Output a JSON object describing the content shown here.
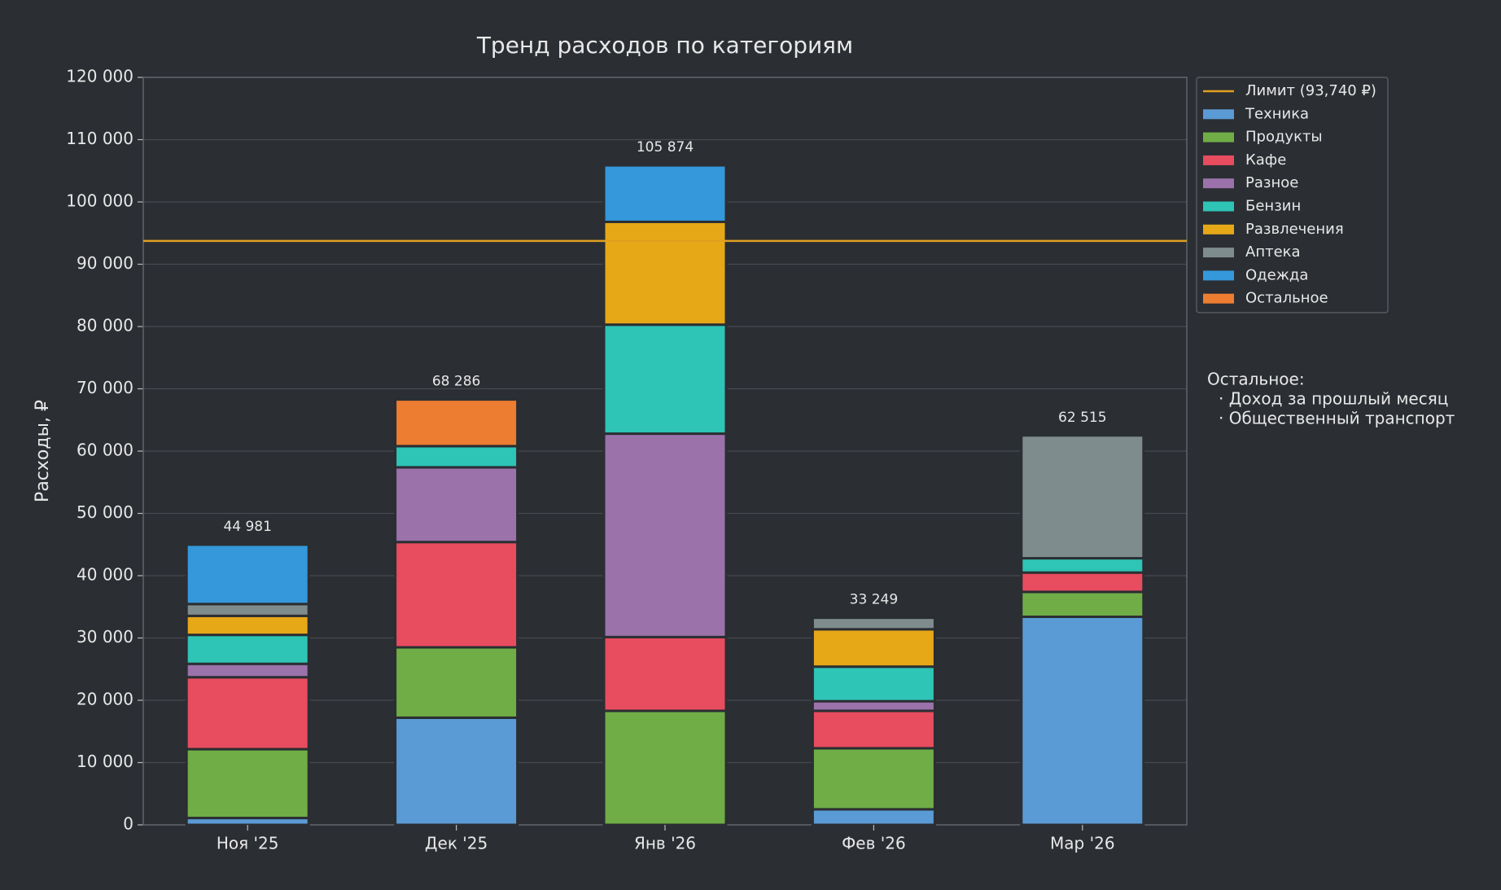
{
  "chart_data": {
    "type": "stacked_bar",
    "title": "Тренд расходов по категориям",
    "y_label": "Расходы, ₽",
    "categories": [
      "Ноя '25",
      "Дек '25",
      "Янв '26",
      "Фев '26",
      "Мар '26"
    ],
    "series": [
      {
        "name": "Техника",
        "color": "#5b9bd5",
        "values": [
          1100,
          17200,
          0,
          2500,
          33400
        ]
      },
      {
        "name": "Продукты",
        "color": "#70ad47",
        "values": [
          11050,
          11300,
          18300,
          9800,
          4000
        ]
      },
      {
        "name": "Кафе",
        "color": "#e84c5f",
        "values": [
          11550,
          16900,
          11850,
          6000,
          3100
        ]
      },
      {
        "name": "Разное",
        "color": "#9b72aa",
        "values": [
          2150,
          12000,
          32650,
          1550,
          0
        ]
      },
      {
        "name": "Бензин",
        "color": "#2ec4b6",
        "values": [
          4650,
          3400,
          17500,
          5550,
          2300
        ]
      },
      {
        "name": "Развлечения",
        "color": "#e6a817",
        "values": [
          3050,
          0,
          16500,
          6000,
          0
        ]
      },
      {
        "name": "Аптека",
        "color": "#7f8c8d",
        "values": [
          1900,
          0,
          0,
          1849,
          19715
        ]
      },
      {
        "name": "Одежда",
        "color": "#3498db",
        "values": [
          9531,
          0,
          9074,
          0,
          0
        ]
      },
      {
        "name": "Остальное",
        "color": "#ed7d31",
        "values": [
          0,
          7486,
          0,
          0,
          0
        ]
      }
    ],
    "totals": [
      44981,
      68286,
      105874,
      33249,
      62515
    ],
    "total_labels": [
      "44 981",
      "68 286",
      "105 874",
      "33 249",
      "62 515"
    ],
    "limit": {
      "name": "Лимит (93,740 ₽)",
      "value": 93740,
      "color": "#e0a020"
    },
    "annotation": [
      "Остальное:",
      "· Доход за прошлый месяц",
      "· Общественный транспорт"
    ],
    "ylim": [
      0,
      120000
    ],
    "yticks": [
      0,
      {
        "value": 10000,
        "label": "10 000"
      },
      {
        "value": 20000,
        "label": "20 000"
      },
      {
        "value": 30000,
        "label": "30 000"
      },
      {
        "value": 40000,
        "label": "40 000"
      },
      {
        "value": 50000,
        "label": "50 000"
      },
      {
        "value": 60000,
        "label": "60 000"
      },
      {
        "value": 70000,
        "label": "70 000"
      },
      {
        "value": 80000,
        "label": "80 000"
      },
      {
        "value": 90000,
        "label": "90 000"
      },
      {
        "value": 100000,
        "label": "100 000"
      },
      {
        "value": 110000,
        "label": "110 000"
      },
      {
        "value": 120000,
        "label": "120 000"
      }
    ],
    "grid": true,
    "legend": "upper right outside"
  }
}
